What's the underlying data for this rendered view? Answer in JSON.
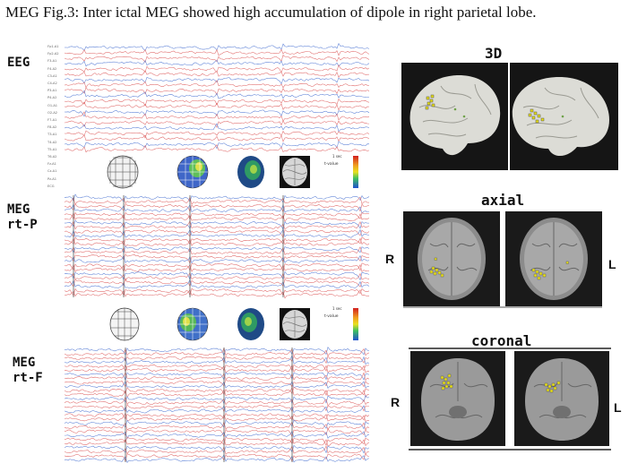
{
  "figure": {
    "title": "MEG  Fig.3: Inter ictal MEG showed high accumulation of dipole in right parietal lobe."
  },
  "panels": {
    "eeg_label": "EEG",
    "meg_p_label_1": "MEG",
    "meg_p_label_2": "rt-P",
    "meg_f_label_1": "MEG",
    "meg_f_label_2": "rt-F"
  },
  "eeg_channels": [
    "Fp1-A1",
    "Fp2-A2",
    "F3-A1",
    "F4-A2",
    "C3-A1",
    "C4-A2",
    "P3-A1",
    "P4-A2",
    "O1-A1",
    "O2-A2",
    "F7-A1",
    "F8-A2",
    "T3-A1",
    "T4-A2",
    "T5-A1",
    "T6-A2",
    "Fz-A1",
    "Cz-A1",
    "Pz-A1",
    "ECG"
  ],
  "colorbar": {
    "label": "t-value"
  },
  "scale_bar": {
    "label": "1 sec"
  },
  "brain_views": {
    "view_3d": "3D",
    "view_axial": "axial",
    "view_coronal": "coronal",
    "right_marker": "R",
    "left_marker": "L"
  },
  "colors": {
    "trace_red": "#e06a6a",
    "trace_blue": "#5a7fd6",
    "dipole_yellow": "#e8e020"
  }
}
